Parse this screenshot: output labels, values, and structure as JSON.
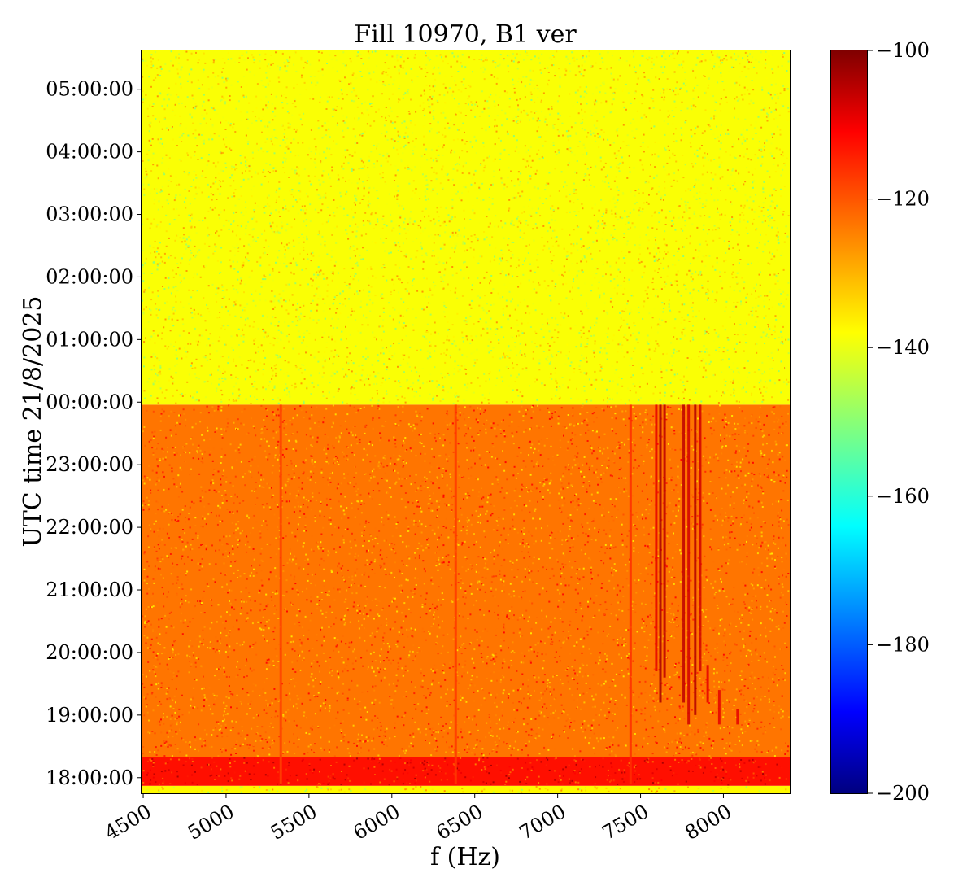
{
  "chart_data": {
    "type": "heatmap",
    "title": "Fill 10970, B1 ver",
    "xlabel": "f (Hz)",
    "ylabel": "UTC time 21/8/2025",
    "x_ticks": [
      "4500",
      "5000",
      "5500",
      "6000",
      "6500",
      "7000",
      "7500",
      "8000"
    ],
    "x_tick_values": [
      4500,
      5000,
      5500,
      6000,
      6500,
      7000,
      7500,
      8000
    ],
    "xlim": [
      4490,
      8400
    ],
    "y_ticks": [
      "18:00:00",
      "19:00:00",
      "20:00:00",
      "21:00:00",
      "22:00:00",
      "23:00:00",
      "00:00:00",
      "01:00:00",
      "02:00:00",
      "03:00:00",
      "04:00:00",
      "05:00:00"
    ],
    "y_tick_hours": [
      18,
      19,
      20,
      21,
      22,
      23,
      24,
      25,
      26,
      27,
      28,
      29
    ],
    "ylim_hours": [
      17.75,
      29.62
    ],
    "colorbar": {
      "ticks": [
        "−100",
        "−120",
        "−140",
        "−160",
        "−180",
        "−200"
      ],
      "tick_values": [
        -100,
        -120,
        -140,
        -160,
        -180,
        -200
      ],
      "range": [
        -200,
        -100
      ],
      "colormap": "jet"
    },
    "regions": [
      {
        "time_range_hours": [
          17.75,
          17.87
        ],
        "level": -137
      },
      {
        "time_range_hours": [
          17.87,
          18.33
        ],
        "level": -114
      },
      {
        "time_range_hours": [
          18.33,
          23.96
        ],
        "level": -124
      },
      {
        "time_range_hours": [
          23.96,
          29.62
        ],
        "level": -138
      }
    ],
    "lines": [
      {
        "freq": 5330,
        "time_range_hours": [
          17.9,
          23.96
        ],
        "level": -119
      },
      {
        "freq": 6385,
        "time_range_hours": [
          17.9,
          23.96
        ],
        "level": -118
      },
      {
        "freq": 7440,
        "time_range_hours": [
          17.9,
          23.96
        ],
        "level": -117
      },
      {
        "freq": 7595,
        "time_range_hours": [
          19.7,
          23.96
        ],
        "level": -110
      },
      {
        "freq": 7620,
        "time_range_hours": [
          19.2,
          23.96
        ],
        "level": -104
      },
      {
        "freq": 7645,
        "time_range_hours": [
          19.6,
          23.96
        ],
        "level": -106
      },
      {
        "freq": 7760,
        "time_range_hours": [
          19.2,
          23.96
        ],
        "level": -106
      },
      {
        "freq": 7790,
        "time_range_hours": [
          18.85,
          23.96
        ],
        "level": -108
      },
      {
        "freq": 7830,
        "time_range_hours": [
          19.0,
          23.96
        ],
        "level": -105
      },
      {
        "freq": 7860,
        "time_range_hours": [
          19.7,
          23.96
        ],
        "level": -108
      },
      {
        "freq": 7905,
        "time_range_hours": [
          19.2,
          19.8
        ],
        "level": -110
      },
      {
        "freq": 7975,
        "time_range_hours": [
          18.85,
          19.4
        ],
        "level": -110
      },
      {
        "freq": 8085,
        "time_range_hours": [
          18.85,
          19.1
        ],
        "level": -110
      }
    ]
  }
}
